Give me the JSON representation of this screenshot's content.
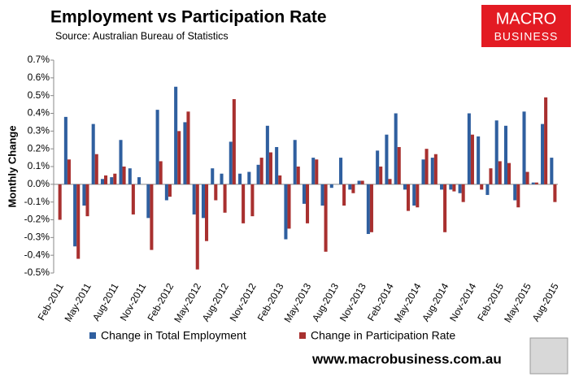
{
  "chart_data": {
    "type": "bar",
    "title": "Employment vs Participation Rate",
    "subtitle": "Source: Australian Bureau of Statistics",
    "logo": [
      "MACRO",
      "BUSINESS"
    ],
    "website": "www.macrobusiness.com.au",
    "y_label": "Monthly Change",
    "categories": [
      "Feb-2011",
      null,
      null,
      "May-2011",
      null,
      null,
      "Aug-2011",
      null,
      null,
      "Nov-2011",
      null,
      null,
      "Feb-2012",
      null,
      null,
      "May-2012",
      null,
      null,
      "Aug-2012",
      null,
      null,
      "Nov-2012",
      null,
      null,
      "Feb-2013",
      null,
      null,
      "May-2013",
      null,
      null,
      "Aug-2013",
      null,
      null,
      "Nov-2013",
      null,
      null,
      "Feb-2014",
      null,
      null,
      "May-2014",
      null,
      null,
      "Aug-2014",
      null,
      null,
      "Nov-2014",
      null,
      null,
      "Feb-2015",
      null,
      null,
      "May-2015",
      null,
      null,
      "Aug-2015"
    ],
    "series": [
      {
        "name": "Change in Total Employment",
        "color": "#2f5f9f",
        "values": [
          0.0,
          0.38,
          -0.35,
          -0.12,
          0.34,
          0.03,
          0.04,
          0.25,
          0.09,
          0.04,
          -0.19,
          0.42,
          -0.09,
          0.55,
          0.35,
          -0.17,
          -0.19,
          0.09,
          0.06,
          0.24,
          0.06,
          0.07,
          0.11,
          0.33,
          0.21,
          -0.31,
          0.25,
          -0.11,
          0.15,
          -0.12,
          -0.02,
          0.15,
          -0.03,
          0.02,
          -0.28,
          0.19,
          0.28,
          0.4,
          -0.03,
          -0.12,
          0.14,
          0.15,
          -0.03,
          -0.03,
          -0.05,
          0.4,
          0.27,
          -0.06,
          0.36,
          0.33,
          -0.09,
          0.41,
          0.01,
          0.34,
          0.15
        ]
      },
      {
        "name": "Change in Participation Rate",
        "color": "#a8302f",
        "values": [
          -0.2,
          0.14,
          -0.42,
          -0.18,
          0.17,
          0.05,
          0.06,
          0.1,
          -0.17,
          0.0,
          -0.37,
          0.13,
          -0.07,
          0.3,
          0.41,
          -0.48,
          -0.32,
          -0.09,
          -0.16,
          0.48,
          -0.22,
          -0.18,
          0.15,
          0.18,
          0.05,
          -0.25,
          0.1,
          -0.22,
          0.14,
          -0.38,
          0.0,
          -0.12,
          -0.05,
          0.02,
          -0.27,
          0.1,
          0.03,
          0.21,
          -0.15,
          -0.13,
          0.2,
          0.17,
          -0.27,
          -0.04,
          -0.1,
          0.28,
          -0.03,
          0.09,
          0.13,
          0.12,
          -0.13,
          0.07,
          0.01,
          0.49,
          -0.1
        ]
      }
    ],
    "ylim": [
      -0.5,
      0.7
    ],
    "yticks": [
      {
        "value": -0.5,
        "label": "-0.5%"
      },
      {
        "value": -0.4,
        "label": "-0.4%"
      },
      {
        "value": -0.3,
        "label": "-0.3%"
      },
      {
        "value": -0.2,
        "label": "-0.2%"
      },
      {
        "value": -0.1,
        "label": "-0.1%"
      },
      {
        "value": 0.0,
        "label": "0.0%"
      },
      {
        "value": 0.1,
        "label": "0.1%"
      },
      {
        "value": 0.2,
        "label": "0.2%"
      },
      {
        "value": 0.3,
        "label": "0.3%"
      },
      {
        "value": 0.4,
        "label": "0.4%"
      },
      {
        "value": 0.5,
        "label": "0.5%"
      },
      {
        "value": 0.6,
        "label": "0.6%"
      },
      {
        "value": 0.7,
        "label": "0.7%"
      }
    ],
    "grid": false
  }
}
